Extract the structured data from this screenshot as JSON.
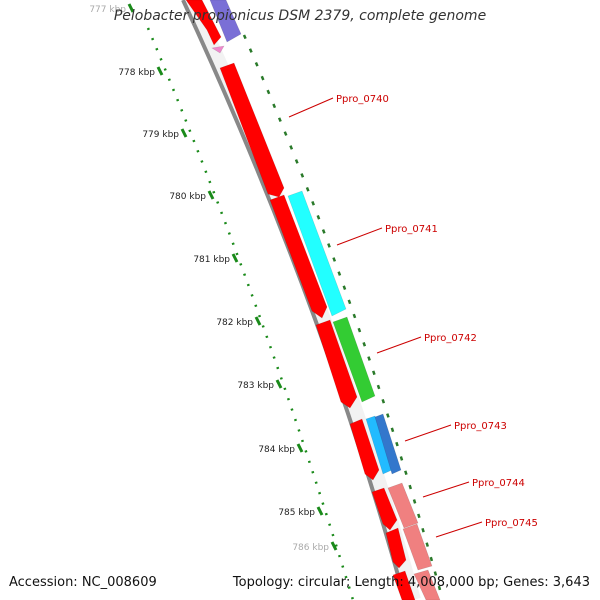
{
  "title": "Pelobacter propionicus DSM 2379, complete genome",
  "accession": "Accession: NC_008609",
  "summary": "Topology: circular; Length: 4,008,000 bp; Genes: 3,643",
  "ticks": [
    {
      "label": "777 kbp",
      "faded": true
    },
    {
      "label": "778 kbp"
    },
    {
      "label": "779 kbp"
    },
    {
      "label": "780 kbp"
    },
    {
      "label": "781 kbp"
    },
    {
      "label": "782 kbp"
    },
    {
      "label": "783 kbp"
    },
    {
      "label": "784 kbp"
    },
    {
      "label": "785 kbp"
    },
    {
      "label": "786 kbp",
      "faded": true
    }
  ],
  "genes": [
    {
      "name": "Ppro_0740"
    },
    {
      "name": "Ppro_0741"
    },
    {
      "name": "Ppro_0742"
    },
    {
      "name": "Ppro_0743"
    },
    {
      "name": "Ppro_0744"
    },
    {
      "name": "Ppro_0745"
    }
  ],
  "colors": {
    "cds": "#ff0000",
    "label": "#cc0000",
    "backbone": "#888888",
    "tick": "#1a8a1a",
    "cyan": "#22ffff",
    "green": "#33cc33",
    "blue": "#3377cc",
    "pink": "#f08080",
    "purple": "#7a6fd6"
  }
}
